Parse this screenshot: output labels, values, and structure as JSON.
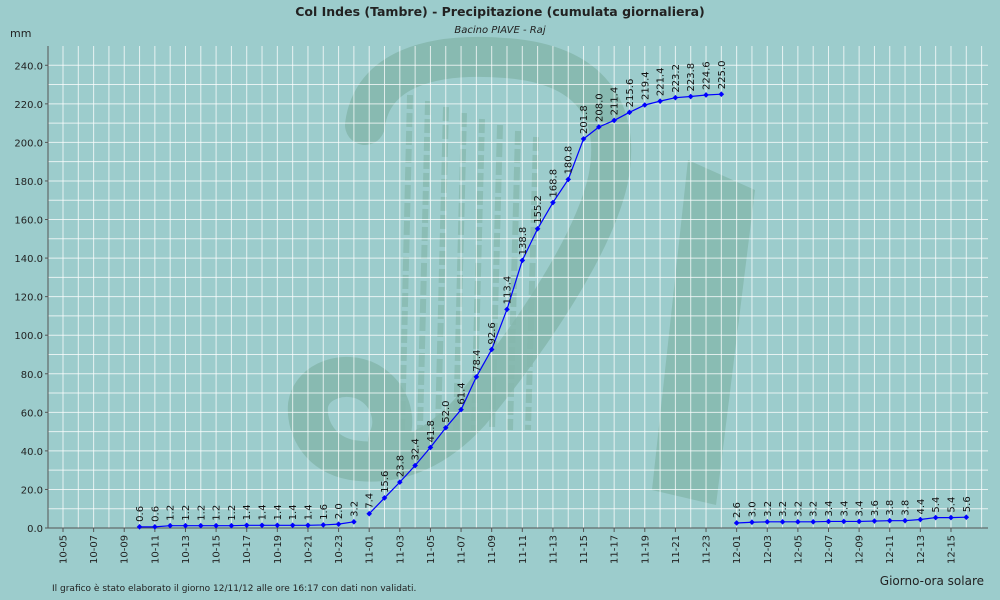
{
  "chart_data": {
    "type": "line",
    "title": "Col Indes (Tambre) - Precipitazione (cumulata giornaliera)",
    "subtitle": "Bacino PIAVE - Raj",
    "ylabel": "mm",
    "xlabel": "Giorno-ora solare",
    "footnote": "Il grafico è stato elaborato il giorno 12/11/12 alle ore 16:17 con dati non validati.",
    "ylim": [
      0,
      250
    ],
    "yticks": [
      0,
      20,
      40,
      60,
      80,
      100,
      120,
      140,
      160,
      180,
      200,
      220,
      240
    ],
    "ytick_labels": [
      "0.0",
      "20.0",
      "40.0",
      "60.0",
      "80.0",
      "100.0",
      "120.0",
      "140.0",
      "160.0",
      "180.0",
      "200.0",
      "220.0",
      "240.0"
    ],
    "xticks": [
      "10-05",
      "10-07",
      "10-09",
      "10-11",
      "10-13",
      "10-15",
      "10-17",
      "10-19",
      "10-21",
      "10-23",
      "11-01",
      "11-03",
      "11-05",
      "11-07",
      "11-09",
      "11-11",
      "11-13",
      "11-15",
      "11-17",
      "11-19",
      "11-21",
      "11-23",
      "12-01",
      "12-03",
      "12-05",
      "12-07",
      "12-09",
      "12-11",
      "12-13",
      "12-15"
    ],
    "grid": true,
    "line_color": "#0000ff",
    "series": [
      {
        "points": [
          {
            "x": "10-10",
            "y": 0.6
          },
          {
            "x": "10-11",
            "y": 0.6
          },
          {
            "x": "10-12",
            "y": 1.2
          },
          {
            "x": "10-13",
            "y": 1.2
          },
          {
            "x": "10-14",
            "y": 1.2
          },
          {
            "x": "10-15",
            "y": 1.2
          },
          {
            "x": "10-16",
            "y": 1.2
          },
          {
            "x": "10-17",
            "y": 1.4
          },
          {
            "x": "10-18",
            "y": 1.4
          },
          {
            "x": "10-19",
            "y": 1.4
          },
          {
            "x": "10-20",
            "y": 1.4
          },
          {
            "x": "10-21",
            "y": 1.4
          },
          {
            "x": "10-22",
            "y": 1.6
          },
          {
            "x": "10-23",
            "y": 2.0
          },
          {
            "x": "10-24",
            "y": 3.2
          }
        ]
      },
      {
        "points": [
          {
            "x": "11-01",
            "y": 7.4
          },
          {
            "x": "11-02",
            "y": 15.6
          },
          {
            "x": "11-03",
            "y": 23.8
          },
          {
            "x": "11-04",
            "y": 32.4
          },
          {
            "x": "11-05",
            "y": 41.8
          },
          {
            "x": "11-06",
            "y": 52.0
          },
          {
            "x": "11-07",
            "y": 61.4
          },
          {
            "x": "11-08",
            "y": 78.4
          },
          {
            "x": "11-09",
            "y": 92.6
          },
          {
            "x": "11-10",
            "y": 113.4
          },
          {
            "x": "11-11",
            "y": 138.8
          },
          {
            "x": "11-12",
            "y": 155.2
          },
          {
            "x": "11-13",
            "y": 168.8
          },
          {
            "x": "11-14",
            "y": 180.8
          },
          {
            "x": "11-15",
            "y": 201.8
          },
          {
            "x": "11-16",
            "y": 208.0
          },
          {
            "x": "11-17",
            "y": 211.4
          },
          {
            "x": "11-18",
            "y": 215.6
          },
          {
            "x": "11-19",
            "y": 219.4
          },
          {
            "x": "11-20",
            "y": 221.4
          },
          {
            "x": "11-21",
            "y": 223.2
          },
          {
            "x": "11-22",
            "y": 223.8
          },
          {
            "x": "11-23",
            "y": 224.6
          },
          {
            "x": "11-24",
            "y": 225.0
          }
        ]
      },
      {
        "points": [
          {
            "x": "12-01",
            "y": 2.6
          },
          {
            "x": "12-02",
            "y": 3.0
          },
          {
            "x": "12-03",
            "y": 3.2
          },
          {
            "x": "12-04",
            "y": 3.2
          },
          {
            "x": "12-05",
            "y": 3.2
          },
          {
            "x": "12-06",
            "y": 3.2
          },
          {
            "x": "12-07",
            "y": 3.4
          },
          {
            "x": "12-08",
            "y": 3.4
          },
          {
            "x": "12-09",
            "y": 3.4
          },
          {
            "x": "12-10",
            "y": 3.6
          },
          {
            "x": "12-11",
            "y": 3.8
          },
          {
            "x": "12-12",
            "y": 3.8
          },
          {
            "x": "12-13",
            "y": 4.4
          },
          {
            "x": "12-14",
            "y": 5.4
          },
          {
            "x": "12-15",
            "y": 5.4
          },
          {
            "x": "12-16",
            "y": 5.6
          }
        ]
      }
    ]
  },
  "colors": {
    "background": "#9ccccc",
    "grid": "#ffffff",
    "line": "#0000ff",
    "watermark": "#86b8ae"
  }
}
